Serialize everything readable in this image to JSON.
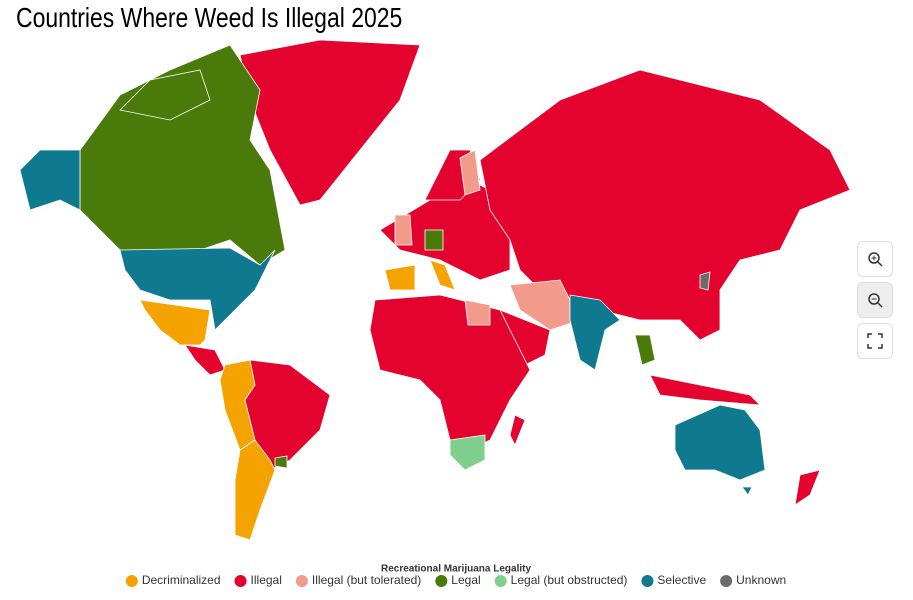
{
  "title": "Countries Where Weed Is Illegal 2025",
  "legend": {
    "title": "Recreational Marijuana Legality",
    "items": [
      {
        "label": "Decriminalized",
        "color": "#f5a300"
      },
      {
        "label": "Illegal",
        "color": "#e4032e"
      },
      {
        "label": "Illegal (but tolerated)",
        "color": "#f29b8b"
      },
      {
        "label": "Legal",
        "color": "#4a7a0a"
      },
      {
        "label": "Legal (but obstructed)",
        "color": "#7fd08f"
      },
      {
        "label": "Selective",
        "color": "#0f7a8f"
      },
      {
        "label": "Unknown",
        "color": "#6b6b6b"
      }
    ]
  }
}
